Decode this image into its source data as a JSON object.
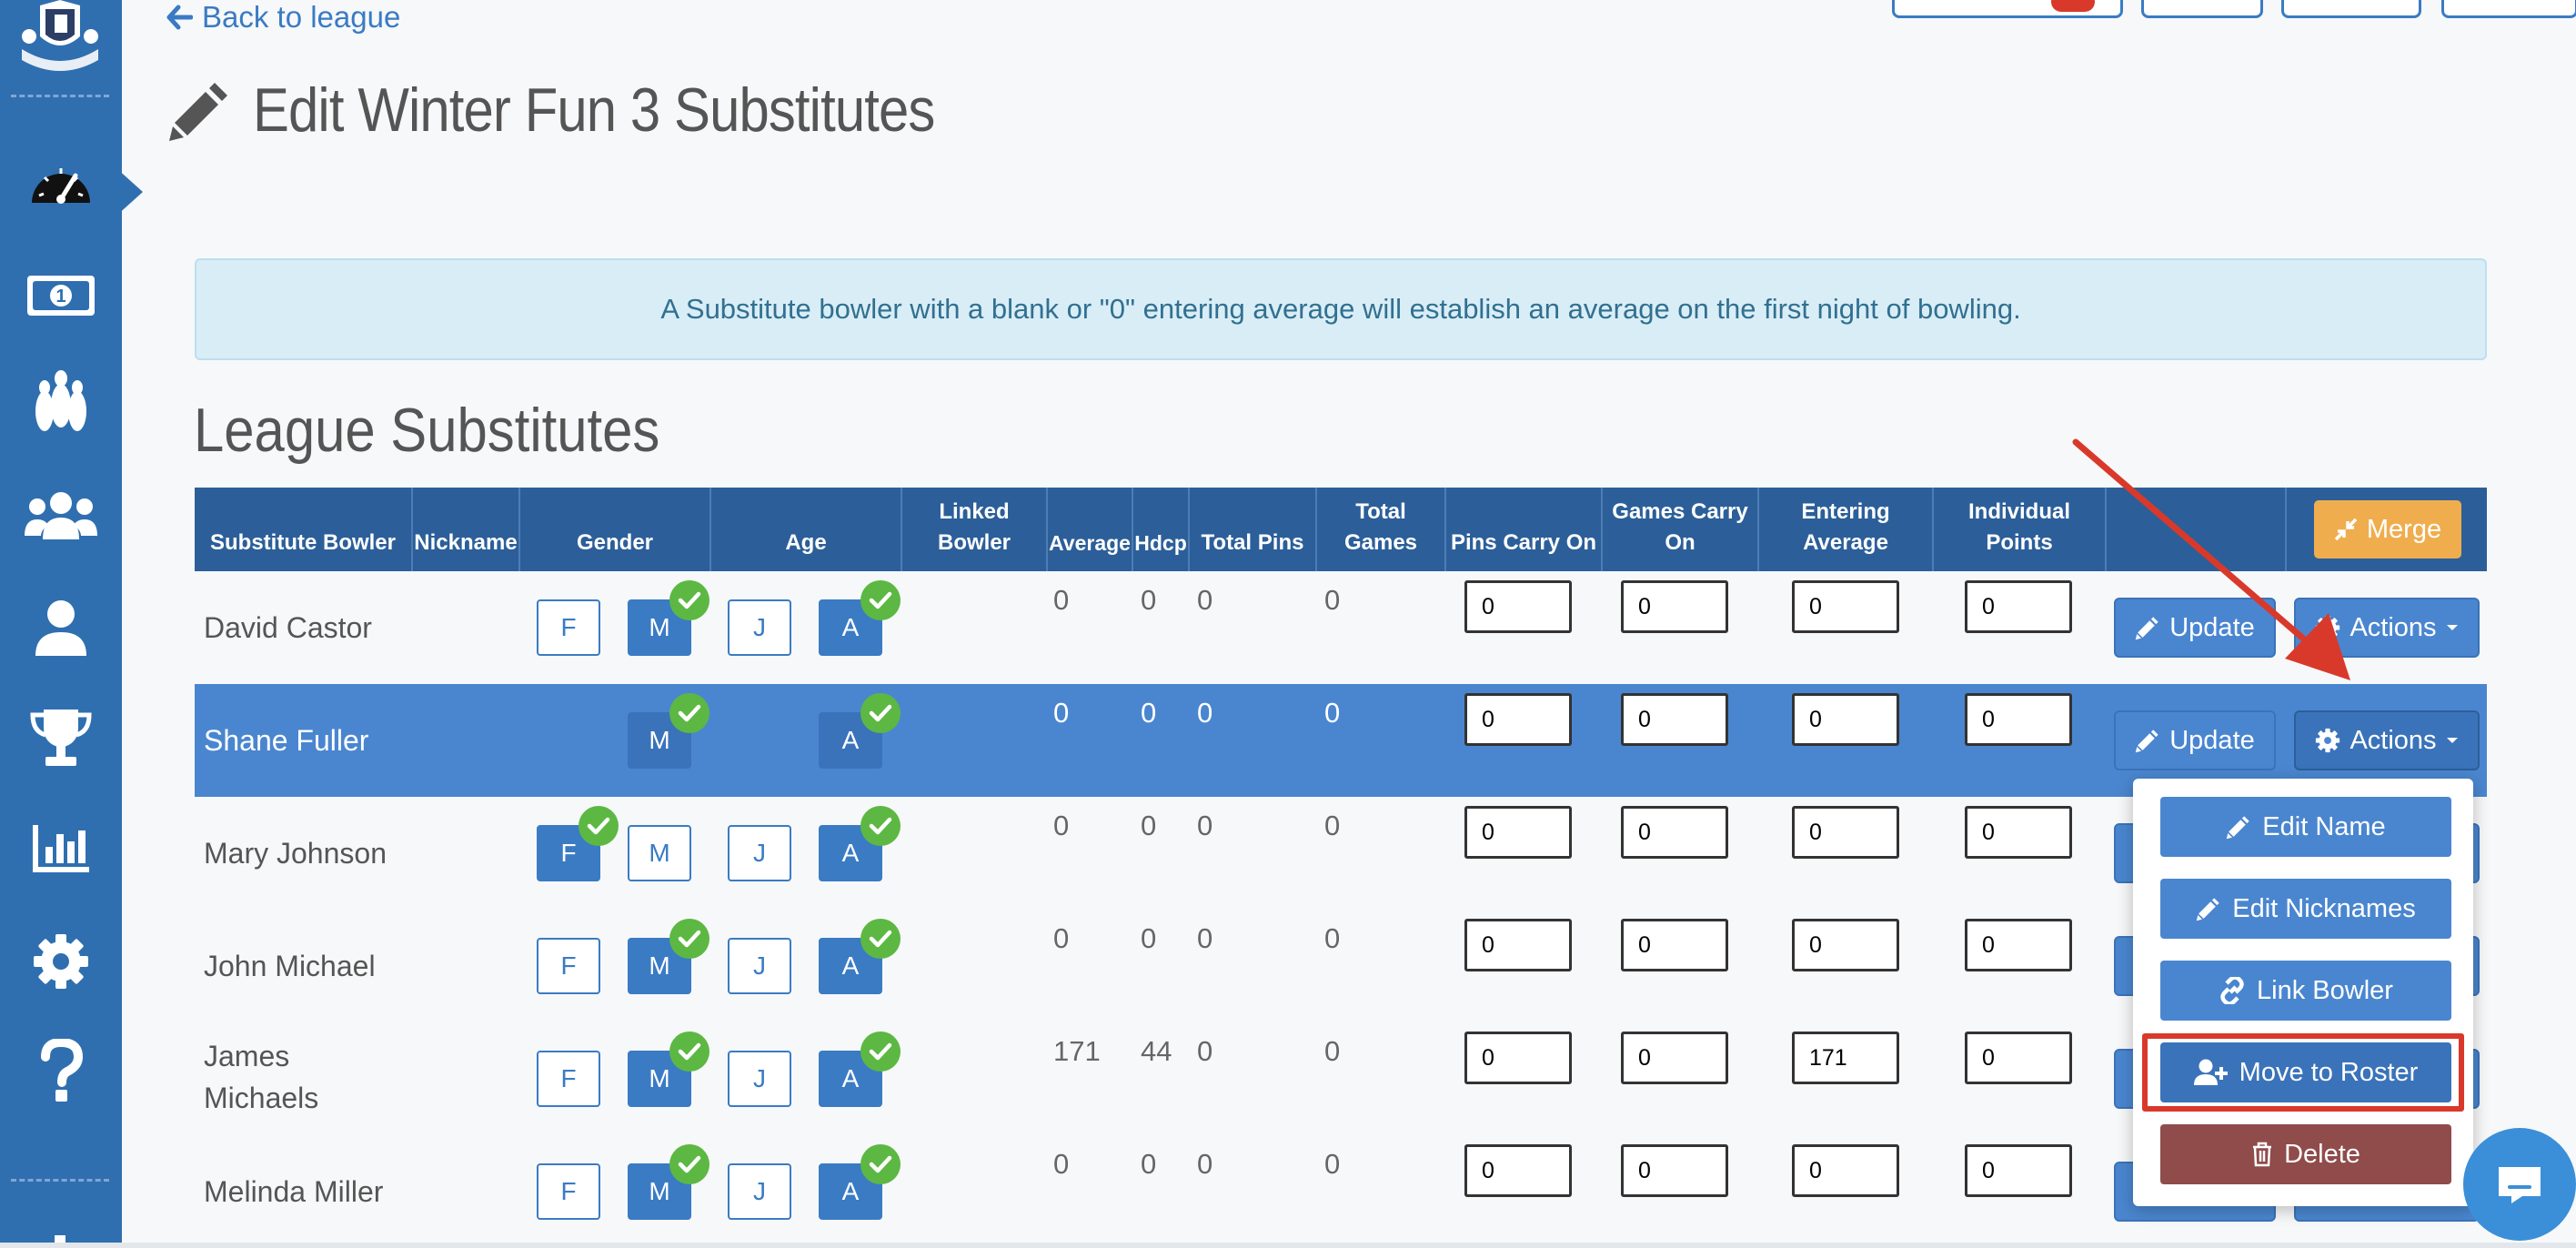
{
  "nav": {
    "back_label": "Back to league"
  },
  "page": {
    "title": "Edit Winter Fun 3 Substitutes",
    "section_title": "League Substitutes"
  },
  "alert": {
    "text": "A Substitute bowler with a blank or \"0\" entering average will establish an average on the first night of bowling."
  },
  "table": {
    "headers": [
      {
        "label": "Substitute Bowler"
      },
      {
        "label": "Nickname"
      },
      {
        "label": "Gender"
      },
      {
        "label": "Age"
      },
      {
        "label": "Linked Bowler"
      },
      {
        "label": "Average"
      },
      {
        "label": "Hdcp"
      },
      {
        "label": "Total Pins"
      },
      {
        "label": "Total Games"
      },
      {
        "label": "Pins Carry On"
      },
      {
        "label": "Games Carry On"
      },
      {
        "label": "Entering Average"
      },
      {
        "label": "Individual Points"
      }
    ],
    "gender_labels": {
      "f": "F",
      "m": "M",
      "j": "J",
      "a": "A"
    },
    "merge_label": "Merge",
    "update_label": "Update",
    "actions_label": "Actions",
    "rows": [
      {
        "name": "David Castor",
        "f": false,
        "m": true,
        "j": false,
        "a": true,
        "average": "0",
        "hdcp": "0",
        "total_pins": "0",
        "total_games": "0",
        "pins_carry": "0",
        "games_carry": "0",
        "entering_avg": "0",
        "points": "0"
      },
      {
        "name": "Shane Fuller",
        "f": false,
        "m": true,
        "j": false,
        "a": true,
        "average": "0",
        "hdcp": "0",
        "total_pins": "0",
        "total_games": "0",
        "pins_carry": "0",
        "games_carry": "0",
        "entering_avg": "0",
        "points": "0"
      },
      {
        "name": "Mary Johnson",
        "f": true,
        "m": false,
        "j": false,
        "a": true,
        "average": "0",
        "hdcp": "0",
        "total_pins": "0",
        "total_games": "0",
        "pins_carry": "0",
        "games_carry": "0",
        "entering_avg": "0",
        "points": "0"
      },
      {
        "name": "John Michael",
        "f": false,
        "m": true,
        "j": false,
        "a": true,
        "average": "0",
        "hdcp": "0",
        "total_pins": "0",
        "total_games": "0",
        "pins_carry": "0",
        "games_carry": "0",
        "entering_avg": "0",
        "points": "0"
      },
      {
        "name": "James Michaels",
        "f": false,
        "m": true,
        "j": false,
        "a": true,
        "average": "171",
        "hdcp": "44",
        "total_pins": "0",
        "total_games": "0",
        "pins_carry": "0",
        "games_carry": "0",
        "entering_avg": "171",
        "points": "0"
      },
      {
        "name": "Melinda Miller",
        "f": false,
        "m": true,
        "j": false,
        "a": true,
        "average": "0",
        "hdcp": "0",
        "total_pins": "0",
        "total_games": "0",
        "pins_carry": "0",
        "games_carry": "0",
        "entering_avg": "0",
        "points": "0"
      }
    ]
  },
  "dropdown": {
    "items": [
      {
        "label": "Edit Name",
        "icon": "pencil-icon"
      },
      {
        "label": "Edit Nicknames",
        "icon": "pencil-icon"
      },
      {
        "label": "Link Bowler",
        "icon": "link-icon"
      },
      {
        "label": "Move to Roster",
        "icon": "user-plus-icon"
      },
      {
        "label": "Delete",
        "icon": "trash-icon"
      }
    ]
  },
  "colors": {
    "sidebar": "#2f6fb0",
    "header": "#2c5f99",
    "primary": "#4a86cf",
    "check": "#5cb843",
    "merge": "#f0ad4e",
    "delete": "#8f4c4b",
    "highlight": "#d9392b"
  }
}
